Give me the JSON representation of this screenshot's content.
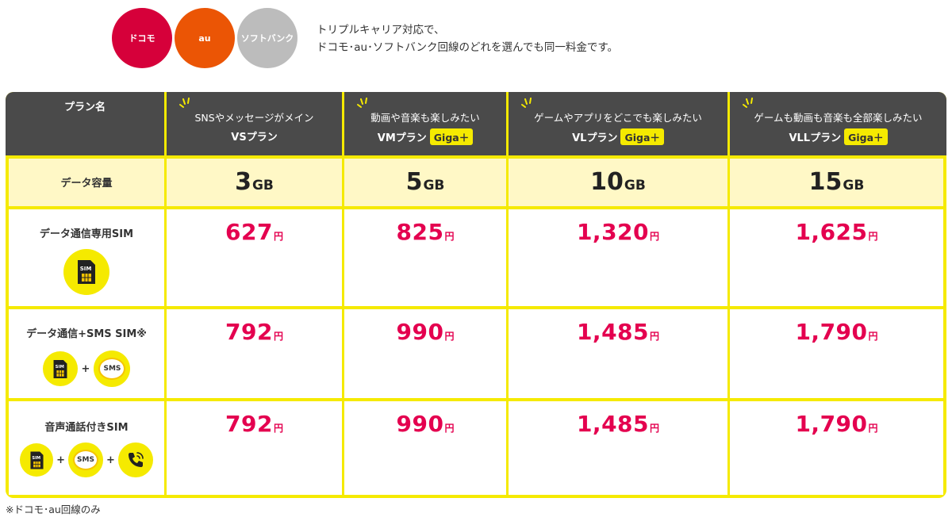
{
  "carriers": [
    {
      "label": "ドコモ",
      "color": "#d6003a"
    },
    {
      "label": "au",
      "color": "#eb5505"
    },
    {
      "label": "ソフトバンク",
      "color": "#bcbcbc"
    }
  ],
  "carrier_note": {
    "line1": "トリプルキャリア対応で、",
    "line2": "ドコモ･au･ソフトバンク回線のどれを選んでも同一料金です。"
  },
  "table": {
    "corner_label": "プラン名",
    "plans": [
      {
        "desc": "SNSやメッセージがメイン",
        "name": "VSプラン",
        "tag": ""
      },
      {
        "desc": "動画や音楽も楽しみたい",
        "name": "VMプラン",
        "tag": "Giga＋"
      },
      {
        "desc": "ゲームやアプリをどこでも楽しみたい",
        "name": "VLプラン",
        "tag": "Giga＋"
      },
      {
        "desc": "ゲームも動画も音楽も全部楽しみたい",
        "name": "VLLプラン",
        "tag": "Giga＋"
      }
    ],
    "data_row": {
      "label": "データ容量",
      "unit": "GB",
      "values": [
        "3",
        "5",
        "10",
        "15"
      ]
    },
    "price_unit": "円",
    "price_rows": [
      {
        "label": "データ通信専用SIM",
        "icons": [
          "sim-icon"
        ],
        "prices": [
          "627",
          "825",
          "1,320",
          "1,625"
        ]
      },
      {
        "label": "データ通信+SMS SIM※",
        "icons": [
          "sim-icon",
          "sms-icon"
        ],
        "prices": [
          "792",
          "990",
          "1,485",
          "1,790"
        ]
      },
      {
        "label": "音声通話付きSIM",
        "icons": [
          "sim-icon",
          "sms-icon",
          "phone-icon"
        ],
        "prices": [
          "792",
          "990",
          "1,485",
          "1,790"
        ]
      }
    ],
    "icon_text": {
      "sim": "SIM",
      "sms": "SMS",
      "plus": "+"
    }
  },
  "footnote": "※ドコモ･au回線のみ",
  "colors": {
    "header_bg": "#4a4a4a",
    "accent_yellow": "#f5ea00",
    "price_pink": "#e4004f",
    "data_row_bg": "#fff8c6"
  }
}
